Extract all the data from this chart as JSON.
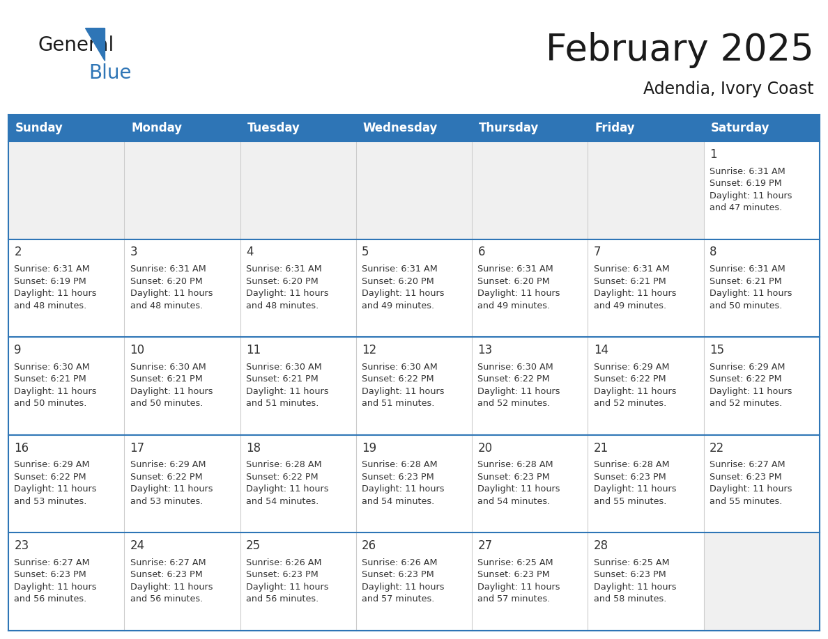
{
  "title": "February 2025",
  "subtitle": "Adendia, Ivory Coast",
  "header_color": "#2e75b6",
  "header_text_color": "#ffffff",
  "empty_cell_bg": "#f0f0f0",
  "filled_cell_bg": "#ffffff",
  "border_color": "#2e75b6",
  "day_number_color": "#333333",
  "info_text_color": "#333333",
  "grid_line_color": "#2e75b6",
  "inner_line_color": "#cccccc",
  "days_of_week": [
    "Sunday",
    "Monday",
    "Tuesday",
    "Wednesday",
    "Thursday",
    "Friday",
    "Saturday"
  ],
  "weeks": [
    [
      {
        "day": null,
        "info": null
      },
      {
        "day": null,
        "info": null
      },
      {
        "day": null,
        "info": null
      },
      {
        "day": null,
        "info": null
      },
      {
        "day": null,
        "info": null
      },
      {
        "day": null,
        "info": null
      },
      {
        "day": 1,
        "info": "Sunrise: 6:31 AM\nSunset: 6:19 PM\nDaylight: 11 hours\nand 47 minutes."
      }
    ],
    [
      {
        "day": 2,
        "info": "Sunrise: 6:31 AM\nSunset: 6:19 PM\nDaylight: 11 hours\nand 48 minutes."
      },
      {
        "day": 3,
        "info": "Sunrise: 6:31 AM\nSunset: 6:20 PM\nDaylight: 11 hours\nand 48 minutes."
      },
      {
        "day": 4,
        "info": "Sunrise: 6:31 AM\nSunset: 6:20 PM\nDaylight: 11 hours\nand 48 minutes."
      },
      {
        "day": 5,
        "info": "Sunrise: 6:31 AM\nSunset: 6:20 PM\nDaylight: 11 hours\nand 49 minutes."
      },
      {
        "day": 6,
        "info": "Sunrise: 6:31 AM\nSunset: 6:20 PM\nDaylight: 11 hours\nand 49 minutes."
      },
      {
        "day": 7,
        "info": "Sunrise: 6:31 AM\nSunset: 6:21 PM\nDaylight: 11 hours\nand 49 minutes."
      },
      {
        "day": 8,
        "info": "Sunrise: 6:31 AM\nSunset: 6:21 PM\nDaylight: 11 hours\nand 50 minutes."
      }
    ],
    [
      {
        "day": 9,
        "info": "Sunrise: 6:30 AM\nSunset: 6:21 PM\nDaylight: 11 hours\nand 50 minutes."
      },
      {
        "day": 10,
        "info": "Sunrise: 6:30 AM\nSunset: 6:21 PM\nDaylight: 11 hours\nand 50 minutes."
      },
      {
        "day": 11,
        "info": "Sunrise: 6:30 AM\nSunset: 6:21 PM\nDaylight: 11 hours\nand 51 minutes."
      },
      {
        "day": 12,
        "info": "Sunrise: 6:30 AM\nSunset: 6:22 PM\nDaylight: 11 hours\nand 51 minutes."
      },
      {
        "day": 13,
        "info": "Sunrise: 6:30 AM\nSunset: 6:22 PM\nDaylight: 11 hours\nand 52 minutes."
      },
      {
        "day": 14,
        "info": "Sunrise: 6:29 AM\nSunset: 6:22 PM\nDaylight: 11 hours\nand 52 minutes."
      },
      {
        "day": 15,
        "info": "Sunrise: 6:29 AM\nSunset: 6:22 PM\nDaylight: 11 hours\nand 52 minutes."
      }
    ],
    [
      {
        "day": 16,
        "info": "Sunrise: 6:29 AM\nSunset: 6:22 PM\nDaylight: 11 hours\nand 53 minutes."
      },
      {
        "day": 17,
        "info": "Sunrise: 6:29 AM\nSunset: 6:22 PM\nDaylight: 11 hours\nand 53 minutes."
      },
      {
        "day": 18,
        "info": "Sunrise: 6:28 AM\nSunset: 6:22 PM\nDaylight: 11 hours\nand 54 minutes."
      },
      {
        "day": 19,
        "info": "Sunrise: 6:28 AM\nSunset: 6:23 PM\nDaylight: 11 hours\nand 54 minutes."
      },
      {
        "day": 20,
        "info": "Sunrise: 6:28 AM\nSunset: 6:23 PM\nDaylight: 11 hours\nand 54 minutes."
      },
      {
        "day": 21,
        "info": "Sunrise: 6:28 AM\nSunset: 6:23 PM\nDaylight: 11 hours\nand 55 minutes."
      },
      {
        "day": 22,
        "info": "Sunrise: 6:27 AM\nSunset: 6:23 PM\nDaylight: 11 hours\nand 55 minutes."
      }
    ],
    [
      {
        "day": 23,
        "info": "Sunrise: 6:27 AM\nSunset: 6:23 PM\nDaylight: 11 hours\nand 56 minutes."
      },
      {
        "day": 24,
        "info": "Sunrise: 6:27 AM\nSunset: 6:23 PM\nDaylight: 11 hours\nand 56 minutes."
      },
      {
        "day": 25,
        "info": "Sunrise: 6:26 AM\nSunset: 6:23 PM\nDaylight: 11 hours\nand 56 minutes."
      },
      {
        "day": 26,
        "info": "Sunrise: 6:26 AM\nSunset: 6:23 PM\nDaylight: 11 hours\nand 57 minutes."
      },
      {
        "day": 27,
        "info": "Sunrise: 6:25 AM\nSunset: 6:23 PM\nDaylight: 11 hours\nand 57 minutes."
      },
      {
        "day": 28,
        "info": "Sunrise: 6:25 AM\nSunset: 6:23 PM\nDaylight: 11 hours\nand 58 minutes."
      },
      {
        "day": null,
        "info": null
      }
    ]
  ],
  "logo_general_color": "#1a1a1a",
  "logo_blue_color": "#2e75b6",
  "logo_triangle_color": "#2e75b6",
  "title_fontsize": 38,
  "subtitle_fontsize": 17,
  "header_fontsize": 12,
  "day_number_fontsize": 12,
  "info_fontsize": 9.2,
  "fig_width": 11.88,
  "fig_height": 9.18,
  "dpi": 100
}
